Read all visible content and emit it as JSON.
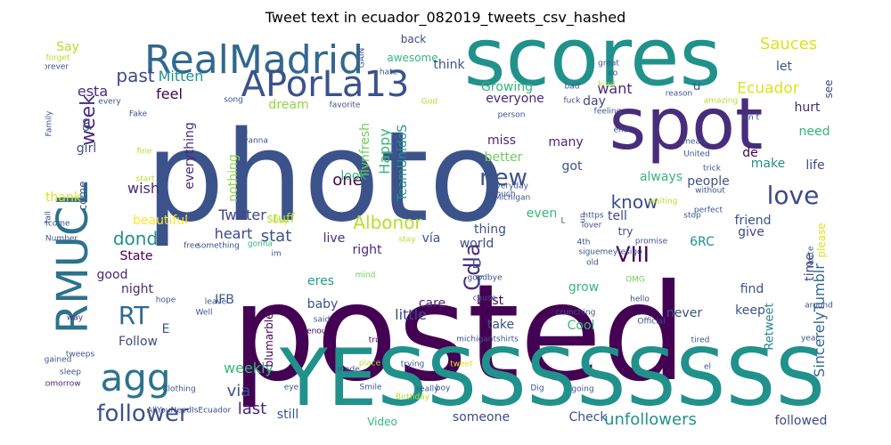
{
  "title": "Tweet text in ecuador_082019_tweets_csv_hashed",
  "words": [
    {
      "text": "photo",
      "color": "#3b528b"
    },
    {
      "text": "posted",
      "color": "#440154"
    },
    {
      "text": "scores",
      "color": "#21918c"
    },
    {
      "text": "YESSSSSSSSS",
      "color": "#21918c"
    },
    {
      "text": "spot",
      "color": "#472d7b"
    },
    {
      "text": "RealMadrid",
      "color": "#31688e"
    },
    {
      "text": "APorLa13",
      "color": "#3b528b"
    },
    {
      "text": "RMUCL",
      "color": "#2c728e"
    },
    {
      "text": "agg",
      "color": "#2c728e"
    },
    {
      "text": "love",
      "color": "#3e4989"
    },
    {
      "text": "follower",
      "color": "#3b528b"
    },
    {
      "text": "RT",
      "color": "#31688e"
    },
    {
      "text": "new",
      "color": "#3b528b"
    },
    {
      "text": "week",
      "color": "#472d7b"
    },
    {
      "text": "past",
      "color": "#3e4989"
    },
    {
      "text": "Albonor",
      "color": "#b5de2b"
    },
    {
      "text": "dond",
      "color": "#21918c"
    },
    {
      "text": "VIII",
      "color": "#440154"
    },
    {
      "text": "Cdla",
      "color": "#472d7b"
    },
    {
      "text": "last",
      "color": "#482878"
    },
    {
      "text": "unfollowers",
      "color": "#21918c"
    },
    {
      "text": "Sauces",
      "color": "#dde318"
    },
    {
      "text": "know",
      "color": "#3e4989"
    },
    {
      "text": "Ecuador",
      "color": "#dde318"
    },
    {
      "text": "one",
      "color": "#440154"
    },
    {
      "text": "Happy",
      "color": "#35b779"
    },
    {
      "text": "TeamUnidoS",
      "color": "#21918c"
    },
    {
      "text": "stat",
      "color": "#3b528b"
    },
    {
      "text": "heart",
      "color": "#3e4989"
    },
    {
      "text": "Twitter",
      "color": "#3e4989"
    },
    {
      "text": "want",
      "color": "#482878"
    },
    {
      "text": "feel",
      "color": "#440154"
    },
    {
      "text": "Mitten",
      "color": "#21918c"
    },
    {
      "text": "esta",
      "color": "#472d7b"
    },
    {
      "text": "wish",
      "color": "#482878"
    },
    {
      "text": "beautiful",
      "color": "#fde725"
    },
    {
      "text": "livnfresh",
      "color": "#6ece58"
    },
    {
      "text": "everything",
      "color": "#472d7b"
    },
    {
      "text": "nothing",
      "color": "#90d743"
    },
    {
      "text": "via",
      "color": "#3b528b"
    },
    {
      "text": "weekly",
      "color": "#35b779"
    },
    {
      "text": "Follow",
      "color": "#3e4989"
    },
    {
      "text": "night",
      "color": "#482878"
    },
    {
      "text": "good",
      "color": "#482878"
    },
    {
      "text": "State",
      "color": "#440154"
    },
    {
      "text": "IFB",
      "color": "#3b528b"
    },
    {
      "text": "baby",
      "color": "#3b528b"
    },
    {
      "text": "eres",
      "color": "#1f9e89"
    },
    {
      "text": "blumarble",
      "color": "#440154"
    },
    {
      "text": "little",
      "color": "#3e4989"
    },
    {
      "text": "still",
      "color": "#3b528b"
    },
    {
      "text": "someone",
      "color": "#3e4989"
    },
    {
      "text": "Video",
      "color": "#35b779"
    },
    {
      "text": "Check",
      "color": "#3b528b"
    },
    {
      "text": "followed",
      "color": "#3e4989"
    },
    {
      "text": "SincerelyTumblr",
      "color": "#31688e"
    },
    {
      "text": "Retweet",
      "color": "#26828e"
    },
    {
      "text": "never",
      "color": "#3b528b"
    },
    {
      "text": "Cool",
      "color": "#35b779"
    },
    {
      "text": "take",
      "color": "#3b528b"
    },
    {
      "text": "best",
      "color": "#440154"
    },
    {
      "text": "care",
      "color": "#482878"
    },
    {
      "text": "world",
      "color": "#3e4989"
    },
    {
      "text": "right",
      "color": "#482878"
    },
    {
      "text": "live",
      "color": "#472d7b"
    },
    {
      "text": "stuff",
      "color": "#b5de2b"
    },
    {
      "text": "Growing",
      "color": "#35b779"
    },
    {
      "text": "everyone",
      "color": "#482878"
    },
    {
      "text": "dream",
      "color": "#90d743"
    },
    {
      "text": "miss",
      "color": "#482878"
    },
    {
      "text": "many",
      "color": "#482878"
    },
    {
      "text": "better",
      "color": "#6ece58"
    },
    {
      "text": "got",
      "color": "#3b528b"
    },
    {
      "text": "look",
      "color": "#35b779"
    },
    {
      "text": "thing",
      "color": "#3b528b"
    },
    {
      "text": "even",
      "color": "#35b779"
    },
    {
      "text": "tell",
      "color": "#3e4989"
    },
    {
      "text": "always",
      "color": "#35b779"
    },
    {
      "text": "people",
      "color": "#3b528b"
    },
    {
      "text": "make",
      "color": "#21918c"
    },
    {
      "text": "life",
      "color": "#3e4989"
    },
    {
      "text": "friend",
      "color": "#3b528b"
    },
    {
      "text": "give",
      "color": "#3e4989"
    },
    {
      "text": "find",
      "color": "#3b528b"
    },
    {
      "text": "keep",
      "color": "#3b528b"
    },
    {
      "text": "time",
      "color": "#3e4989"
    },
    {
      "text": "grow",
      "color": "#35b779"
    },
    {
      "text": "6RC",
      "color": "#21918c"
    },
    {
      "text": "hurt",
      "color": "#482878"
    },
    {
      "text": "let",
      "color": "#3b528b"
    },
    {
      "text": "need",
      "color": "#35b779"
    },
    {
      "text": "de",
      "color": "#440154"
    },
    {
      "text": "u",
      "color": "#3b528b"
    },
    {
      "text": "day",
      "color": "#3e4989"
    },
    {
      "text": "see",
      "color": "#3e4989"
    },
    {
      "text": "please",
      "color": "#dde318"
    },
    {
      "text": "Say",
      "color": "#b5de2b"
    },
    {
      "text": "back",
      "color": "#3e4989"
    },
    {
      "text": "awesome",
      "color": "#35b779"
    },
    {
      "text": "think",
      "color": "#3b528b"
    },
    {
      "text": "go",
      "color": "#3e4989"
    },
    {
      "text": "girl",
      "color": "#3b528b"
    },
    {
      "text": "come",
      "color": "#3b528b"
    },
    {
      "text": "thank",
      "color": "#dde318"
    },
    {
      "text": "E",
      "color": "#3b528b"
    },
    {
      "text": "D",
      "color": "#3b528b"
    },
    {
      "text": "T",
      "color": "#3b528b"
    },
    {
      "text": "vía",
      "color": "#3b528b"
    },
    {
      "text": "try",
      "color": "#3e4989"
    },
    {
      "text": "tweeps",
      "color": "#3b528b"
    },
    {
      "text": "AllYouNeedIsEcuador",
      "color": "#3e4989"
    },
    {
      "text": "michigantshirts",
      "color": "#3b528b"
    },
    {
      "text": "Clothing",
      "color": "#3b528b"
    },
    {
      "text": "Birthday",
      "color": "#b5de2b"
    },
    {
      "text": "tomorrow",
      "color": "#482878"
    },
    {
      "text": "sleep",
      "color": "#3b528b"
    },
    {
      "text": "gained",
      "color": "#3b528b"
    },
    {
      "text": "way",
      "color": "#482878"
    },
    {
      "text": "hope",
      "color": "#3b528b"
    },
    {
      "text": "leave",
      "color": "#3b528b"
    },
    {
      "text": "Well",
      "color": "#3b528b"
    },
    {
      "text": "enough",
      "color": "#440154"
    },
    {
      "text": "said",
      "color": "#3b528b"
    },
    {
      "text": "true",
      "color": "#440154"
    },
    {
      "text": "place",
      "color": "#b5de2b"
    },
    {
      "text": "trying",
      "color": "#3b528b"
    },
    {
      "text": "tweet",
      "color": "#dde318"
    },
    {
      "text": "Smile",
      "color": "#3b528b"
    },
    {
      "text": "really",
      "color": "#3b528b"
    },
    {
      "text": "boy",
      "color": "#3b528b"
    },
    {
      "text": "Dig",
      "color": "#3b528b"
    },
    {
      "text": "going",
      "color": "#3b528b"
    },
    {
      "text": "made",
      "color": "#3b528b"
    },
    {
      "text": "eye",
      "color": "#3b528b"
    },
    {
      "text": "cause",
      "color": "#3b528b"
    },
    {
      "text": "crunching",
      "color": "#3b528b"
    },
    {
      "text": "mind",
      "color": "#6ece58"
    },
    {
      "text": "goodbye",
      "color": "#3b528b"
    },
    {
      "text": "im",
      "color": "#3b528b"
    },
    {
      "text": "gonna",
      "color": "#35b779"
    },
    {
      "text": "something",
      "color": "#3b528b"
    },
    {
      "text": "free",
      "color": "#3b528b"
    },
    {
      "text": "stay",
      "color": "#b5de2b"
    },
    {
      "text": "4th",
      "color": "#3b528b"
    },
    {
      "text": "promise",
      "color": "#3b528b"
    },
    {
      "text": "siguemeytesigo",
      "color": "#3b528b"
    },
    {
      "text": "lover",
      "color": "#3b528b"
    },
    {
      "text": "old",
      "color": "#3b528b"
    },
    {
      "text": "OMG",
      "color": "#6ece58"
    },
    {
      "text": "hello",
      "color": "#3b528b"
    },
    {
      "text": "Official",
      "color": "#3b528b"
    },
    {
      "text": "tired",
      "color": "#3b528b"
    },
    {
      "text": "stop",
      "color": "#3b528b"
    },
    {
      "text": "waiting",
      "color": "#b5de2b"
    },
    {
      "text": "without",
      "color": "#3b528b"
    },
    {
      "text": "perfect",
      "color": "#3b528b"
    },
    {
      "text": "trick",
      "color": "#3b528b"
    },
    {
      "text": "United",
      "color": "#3b528b"
    },
    {
      "text": "mean",
      "color": "#3b528b"
    },
    {
      "text": "end",
      "color": "#3b528b"
    },
    {
      "text": "feeling",
      "color": "#3b528b"
    },
    {
      "text": "ain t",
      "color": "#3b528b"
    },
    {
      "text": "reason",
      "color": "#3b528b"
    },
    {
      "text": "amazing",
      "color": "#b5de2b"
    },
    {
      "text": "great",
      "color": "#3b528b"
    },
    {
      "text": "co",
      "color": "#3b528b"
    },
    {
      "text": "kind",
      "color": "#b5de2b"
    },
    {
      "text": "bad",
      "color": "#3b528b"
    },
    {
      "text": "fuck",
      "color": "#3b528b"
    },
    {
      "text": "person",
      "color": "#3b528b"
    },
    {
      "text": "God",
      "color": "#b5de2b"
    },
    {
      "text": "hate",
      "color": "#3b528b"
    },
    {
      "text": "GAIN",
      "color": "#3b528b"
    },
    {
      "text": "favorite",
      "color": "#3b528b"
    },
    {
      "text": "song",
      "color": "#3b528b"
    },
    {
      "text": "every",
      "color": "#3b528b"
    },
    {
      "text": "Fake",
      "color": "#3b528b"
    },
    {
      "text": "forever",
      "color": "#3b528b"
    },
    {
      "text": "forget",
      "color": "#b5de2b"
    },
    {
      "text": "Family",
      "color": "#3b528b"
    },
    {
      "text": "fine",
      "color": "#b5de2b"
    },
    {
      "text": "start",
      "color": "#b5de2b"
    },
    {
      "text": "fall",
      "color": "#3b528b"
    },
    {
      "text": "Welcome",
      "color": "#3b528b"
    },
    {
      "text": "Number",
      "color": "#3b528b"
    },
    {
      "text": "La",
      "color": "#3b528b"
    },
    {
      "text": "wanna",
      "color": "#3b528b"
    },
    {
      "text": "everyday",
      "color": "#3b528b"
    },
    {
      "text": "much",
      "color": "#3b528b"
    },
    {
      "text": "Michigan",
      "color": "#3b528b"
    },
    {
      "text": "L",
      "color": "#3b528b"
    },
    {
      "text": "https",
      "color": "#3b528b"
    },
    {
      "text": "Norte",
      "color": "#3b528b"
    },
    {
      "text": "around",
      "color": "#3b528b"
    },
    {
      "text": "year",
      "color": "#3b528b"
    },
    {
      "text": "el",
      "color": "#3b528b"
    },
    {
      "text": "un",
      "color": "#3b528b"
    },
    {
      "text": "Day",
      "color": "#b5de2b"
    },
    {
      "text": "en",
      "color": "#3b528b"
    }
  ]
}
